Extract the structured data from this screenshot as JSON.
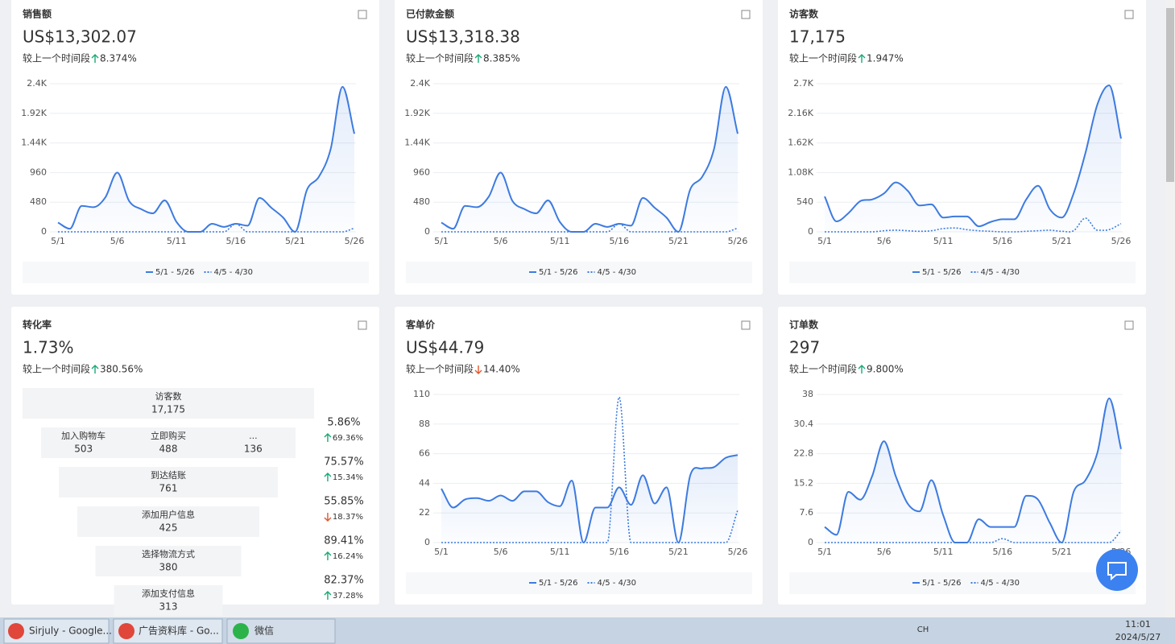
{
  "cards": [
    {
      "title": "销售额",
      "value": "US$13,302.07",
      "compare_label": "较上一个时间段",
      "change": "8.374%",
      "trend": "up",
      "chart_data": {
        "type": "line",
        "categories": [
          "5/1",
          null,
          null,
          null,
          null,
          "5/6",
          null,
          null,
          null,
          null,
          "5/11",
          null,
          null,
          null,
          null,
          "5/16",
          null,
          null,
          null,
          null,
          "5/21",
          null,
          null,
          null,
          null,
          "5/26"
        ],
        "series": [
          {
            "name": "5/1 - 5/26",
            "color": "#3d7be0",
            "line_style": "solid",
            "values": [
              150,
              50,
              420,
              400,
              560,
              960,
              500,
              370,
              300,
              510,
              160,
              0,
              0,
              130,
              80,
              130,
              100,
              550,
              390,
              230,
              0,
              680,
              890,
              1340,
              2350,
              1590
            ]
          },
          {
            "name": "4/5 - 4/30",
            "color": "#3d7be0",
            "line_style": "dotted",
            "values": [
              0,
              0,
              0,
              0,
              0,
              0,
              0,
              0,
              0,
              0,
              0,
              0,
              0,
              0,
              0,
              130,
              0,
              0,
              0,
              0,
              0,
              0,
              0,
              0,
              0,
              60
            ]
          }
        ],
        "ylim": [
          0,
          2400
        ],
        "yticks": [
          0,
          480,
          960,
          {
            "value": 1440,
            "label": "1.44K"
          },
          {
            "value": 1920,
            "label": "1.92K"
          },
          {
            "value": 2400,
            "label": "2.4K"
          }
        ],
        "grid": true,
        "legend": "bottom"
      }
    },
    {
      "title": "已付款金额",
      "value": "US$13,318.38",
      "compare_label": "较上一个时间段",
      "change": "8.385%",
      "trend": "up",
      "chart_data": {
        "type": "line",
        "categories": [
          "5/1",
          null,
          null,
          null,
          null,
          "5/6",
          null,
          null,
          null,
          null,
          "5/11",
          null,
          null,
          null,
          null,
          "5/16",
          null,
          null,
          null,
          null,
          "5/21",
          null,
          null,
          null,
          null,
          "5/26"
        ],
        "series": [
          {
            "name": "5/1 - 5/26",
            "color": "#3d7be0",
            "line_style": "solid",
            "values": [
              150,
              50,
              420,
              400,
              570,
              960,
              500,
              370,
              300,
              510,
              160,
              0,
              0,
              130,
              80,
              130,
              100,
              550,
              390,
              230,
              0,
              690,
              890,
              1340,
              2350,
              1590
            ]
          },
          {
            "name": "4/5 - 4/30",
            "color": "#3d7be0",
            "line_style": "dotted",
            "values": [
              0,
              0,
              0,
              0,
              0,
              0,
              0,
              0,
              0,
              0,
              0,
              0,
              0,
              0,
              0,
              130,
              0,
              0,
              0,
              0,
              0,
              0,
              0,
              0,
              0,
              60
            ]
          }
        ],
        "ylim": [
          0,
          2400
        ],
        "yticks": [
          0,
          480,
          960,
          {
            "value": 1440,
            "label": "1.44K"
          },
          {
            "value": 1920,
            "label": "1.92K"
          },
          {
            "value": 2400,
            "label": "2.4K"
          }
        ],
        "grid": true,
        "legend": "bottom"
      }
    },
    {
      "title": "访客数",
      "value": "17,175",
      "compare_label": "较上一个时间段",
      "change": "1.947%",
      "trend": "up",
      "chart_data": {
        "type": "line",
        "categories": [
          "5/1",
          null,
          null,
          null,
          null,
          "5/6",
          null,
          null,
          null,
          null,
          "5/11",
          null,
          null,
          null,
          null,
          "5/16",
          null,
          null,
          null,
          null,
          "5/21",
          null,
          null,
          null,
          null,
          "5/26"
        ],
        "series": [
          {
            "name": "5/1 - 5/26",
            "color": "#3d7be0",
            "line_style": "solid",
            "values": [
              645,
              190,
              340,
              560,
              590,
              700,
              900,
              750,
              480,
              500,
              260,
              280,
              280,
              100,
              180,
              230,
              230,
              590,
              840,
              410,
              260,
              700,
              1440,
              2320,
              2670,
              1700
            ]
          },
          {
            "name": "4/5 - 4/30",
            "color": "#3d7be0",
            "line_style": "dotted",
            "values": [
              0,
              0,
              0,
              0,
              0,
              20,
              30,
              20,
              10,
              20,
              60,
              70,
              40,
              20,
              10,
              0,
              0,
              10,
              20,
              30,
              10,
              20,
              250,
              30,
              40,
              150
            ]
          }
        ],
        "ylim": [
          0,
          2700
        ],
        "yticks": [
          0,
          540,
          {
            "value": 1080,
            "label": "1.08K"
          },
          {
            "value": 1620,
            "label": "1.62K"
          },
          {
            "value": 2160,
            "label": "2.16K"
          },
          {
            "value": 2700,
            "label": "2.7K"
          }
        ],
        "grid": true,
        "legend": "bottom"
      }
    },
    {
      "title": "转化率",
      "value": "1.73%",
      "compare_label": "较上一个时间段",
      "change": "380.56%",
      "trend": "up",
      "funnel": {
        "stages": [
          [
            {
              "label": "访客数",
              "value": "17,175"
            }
          ],
          [
            {
              "label": "加入购物车",
              "value": "503"
            },
            {
              "label": "立即购买",
              "value": "488"
            },
            {
              "label": "...",
              "value": "136"
            }
          ],
          [
            {
              "label": "到达结账",
              "value": "761"
            }
          ],
          [
            {
              "label": "添加用户信息",
              "value": "425"
            }
          ],
          [
            {
              "label": "选择物流方式",
              "value": "380"
            }
          ],
          [
            {
              "label": "添加支付信息",
              "value": "313"
            }
          ]
        ],
        "rates": [
          {
            "rate": "5.86%",
            "change": "69.36%",
            "trend": "up"
          },
          {
            "rate": "75.57%",
            "change": "15.34%",
            "trend": "up"
          },
          {
            "rate": "55.85%",
            "change": "18.37%",
            "trend": "down"
          },
          {
            "rate": "89.41%",
            "change": "16.24%",
            "trend": "up"
          },
          {
            "rate": "82.37%",
            "change": "37.28%",
            "trend": "up"
          }
        ]
      }
    },
    {
      "title": "客单价",
      "value": "US$44.79",
      "compare_label": "较上一个时间段",
      "change": "14.40%",
      "trend": "down",
      "chart_data": {
        "type": "line",
        "categories": [
          "5/1",
          null,
          null,
          null,
          null,
          "5/6",
          null,
          null,
          null,
          null,
          "5/11",
          null,
          null,
          null,
          null,
          "5/16",
          null,
          null,
          null,
          null,
          "5/21",
          null,
          null,
          null,
          null,
          "5/26"
        ],
        "series": [
          {
            "name": "5/1 - 5/26",
            "color": "#3d7be0",
            "line_style": "solid",
            "values": [
              40,
              26,
              32,
              33,
              31,
              35,
              31,
              38,
              38,
              30,
              27,
              46,
              0,
              26,
              26,
              41,
              28,
              50,
              29,
              41,
              0,
              50,
              55,
              56,
              63,
              65
            ]
          },
          {
            "name": "4/5 - 4/30",
            "color": "#3d7be0",
            "line_style": "dotted",
            "values": [
              0,
              0,
              0,
              0,
              0,
              0,
              0,
              0,
              0,
              0,
              0,
              0,
              0,
              0,
              0,
              108,
              0,
              0,
              0,
              0,
              0,
              0,
              0,
              0,
              0,
              24
            ]
          }
        ],
        "ylim": [
          0,
          110
        ],
        "yticks": [
          0,
          22,
          44,
          66,
          88,
          110
        ],
        "grid": true,
        "legend": "bottom"
      }
    },
    {
      "title": "订单数",
      "value": "297",
      "compare_label": "较上一个时间段",
      "change": "9.800%",
      "trend": "up",
      "chart_data": {
        "type": "line",
        "categories": [
          "5/1",
          null,
          null,
          null,
          null,
          "5/6",
          null,
          null,
          null,
          null,
          "5/11",
          null,
          null,
          null,
          null,
          "5/16",
          null,
          null,
          null,
          null,
          "5/21",
          null,
          null,
          null,
          null,
          "5/26"
        ],
        "series": [
          {
            "name": "5/1 - 5/26",
            "color": "#3d7be0",
            "line_style": "solid",
            "values": [
              4,
              2,
              13,
              11,
              17,
              26,
              17,
              10,
              8,
              16,
              7,
              0,
              0,
              6,
              4,
              4,
              4,
              12,
              11,
              5,
              0,
              13,
              16,
              23,
              37,
              24
            ]
          },
          {
            "name": "4/5 - 4/30",
            "color": "#3d7be0",
            "line_style": "dotted",
            "values": [
              0,
              0,
              0,
              0,
              0,
              0,
              0,
              0,
              0,
              0,
              0,
              0,
              0,
              0,
              0,
              1,
              0,
              0,
              0,
              0,
              0,
              0,
              0,
              0,
              0,
              3
            ]
          }
        ],
        "ylim": [
          0,
          38
        ],
        "yticks": [
          0,
          7.6,
          15.2,
          22.8,
          30.4,
          38
        ],
        "grid": true,
        "legend": "bottom"
      }
    }
  ],
  "taskbar": {
    "tabs": [
      "Sirjuly - Google...",
      "广告资料库 - Go...",
      "微信"
    ],
    "lang": "CH",
    "time": "11:01",
    "date": "2024/5/27"
  }
}
